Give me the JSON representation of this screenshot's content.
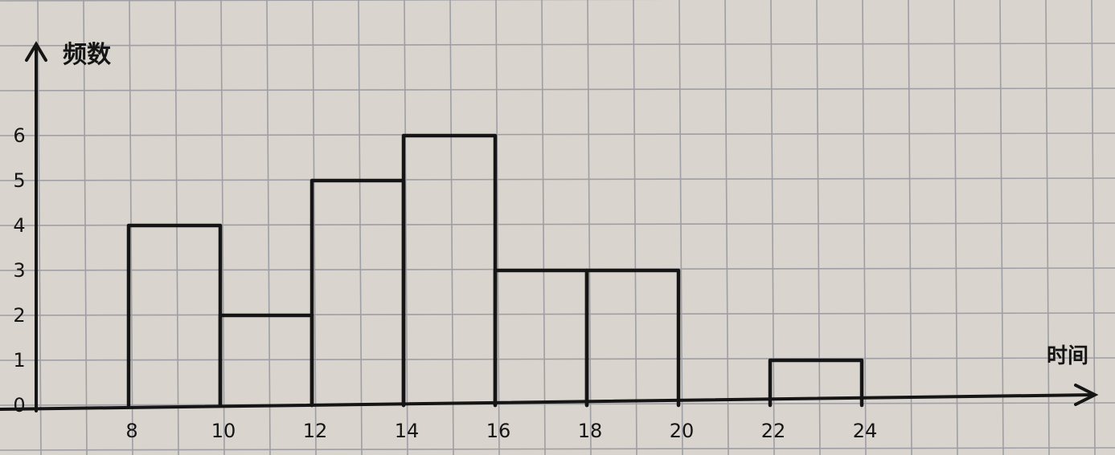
{
  "chart_data": {
    "type": "bar",
    "subtype": "histogram",
    "ylabel": "频数",
    "xlabel": "时间",
    "x_ticks": [
      8,
      10,
      12,
      14,
      16,
      18,
      20,
      22,
      24
    ],
    "y_ticks": [
      0,
      1,
      2,
      3,
      4,
      5,
      6
    ],
    "bins": [
      {
        "x0": 8,
        "x1": 10,
        "value": 4
      },
      {
        "x0": 10,
        "x1": 12,
        "value": 2
      },
      {
        "x0": 12,
        "x1": 14,
        "value": 5
      },
      {
        "x0": 14,
        "x1": 16,
        "value": 6
      },
      {
        "x0": 16,
        "x1": 18,
        "value": 3
      },
      {
        "x0": 18,
        "x1": 20,
        "value": 3
      },
      {
        "x0": 20,
        "x1": 22,
        "value": 0
      },
      {
        "x0": 22,
        "x1": 24,
        "value": 1
      }
    ],
    "xlim": [
      6,
      28
    ],
    "ylim": [
      0,
      8
    ],
    "grid": true,
    "colors": {
      "paper": "#d9d4cd",
      "grid": "#9e9ea4",
      "ink": "#151515"
    }
  }
}
